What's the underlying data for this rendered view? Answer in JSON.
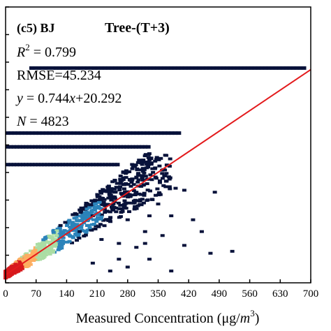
{
  "chart_data": {
    "type": "heatmap",
    "panel_label": "(c5) BJ",
    "title": "Tree-(T+3)",
    "xlabel_prefix": "Measured Concentration (μg/",
    "xlabel_unit": "m",
    "xlabel_exp": "3",
    "xlabel_suffix": ")",
    "xlim": [
      0,
      700
    ],
    "ylim": [
      0,
      700
    ],
    "x_ticks": [
      0,
      70,
      140,
      210,
      280,
      350,
      420,
      490,
      560,
      630,
      700
    ],
    "stats": {
      "r2_symbol": "R",
      "r2_exp": "2",
      "r2_value": " = 0.799",
      "rmse": "RMSE=45.234",
      "fit_y": "y",
      "fit_mid": " = 0.744",
      "fit_x": "x",
      "fit_rest": "+20.292",
      "n_symbol": "N",
      "n_value": " = 4823"
    },
    "fit_line": {
      "slope": 0.744,
      "intercept": 20.292,
      "color": "#e31a1c"
    },
    "colors": {
      "dense": "#d7191c",
      "high": "#fdae61",
      "mid": "#abdda4",
      "low": "#2b83ba",
      "sparse": "#08123a"
    },
    "horizontal_band_y": 545,
    "point_cells": [
      [
        390,
        240
      ],
      [
        410,
        235
      ],
      [
        480,
        230
      ],
      [
        300,
        230
      ],
      [
        350,
        200
      ],
      [
        380,
        170
      ],
      [
        430,
        160
      ],
      [
        320,
        130
      ],
      [
        360,
        120
      ],
      [
        410,
        95
      ],
      [
        450,
        130
      ],
      [
        300,
        90
      ],
      [
        260,
        60
      ],
      [
        200,
        50
      ],
      [
        240,
        30
      ],
      [
        280,
        40
      ],
      [
        330,
        60
      ],
      [
        380,
        30
      ],
      [
        470,
        75
      ],
      [
        520,
        80
      ],
      [
        260,
        100
      ],
      [
        320,
        100
      ],
      [
        220,
        110
      ],
      [
        280,
        160
      ],
      [
        330,
        170
      ],
      [
        240,
        180
      ],
      [
        200,
        170
      ],
      [
        170,
        130
      ]
    ]
  }
}
